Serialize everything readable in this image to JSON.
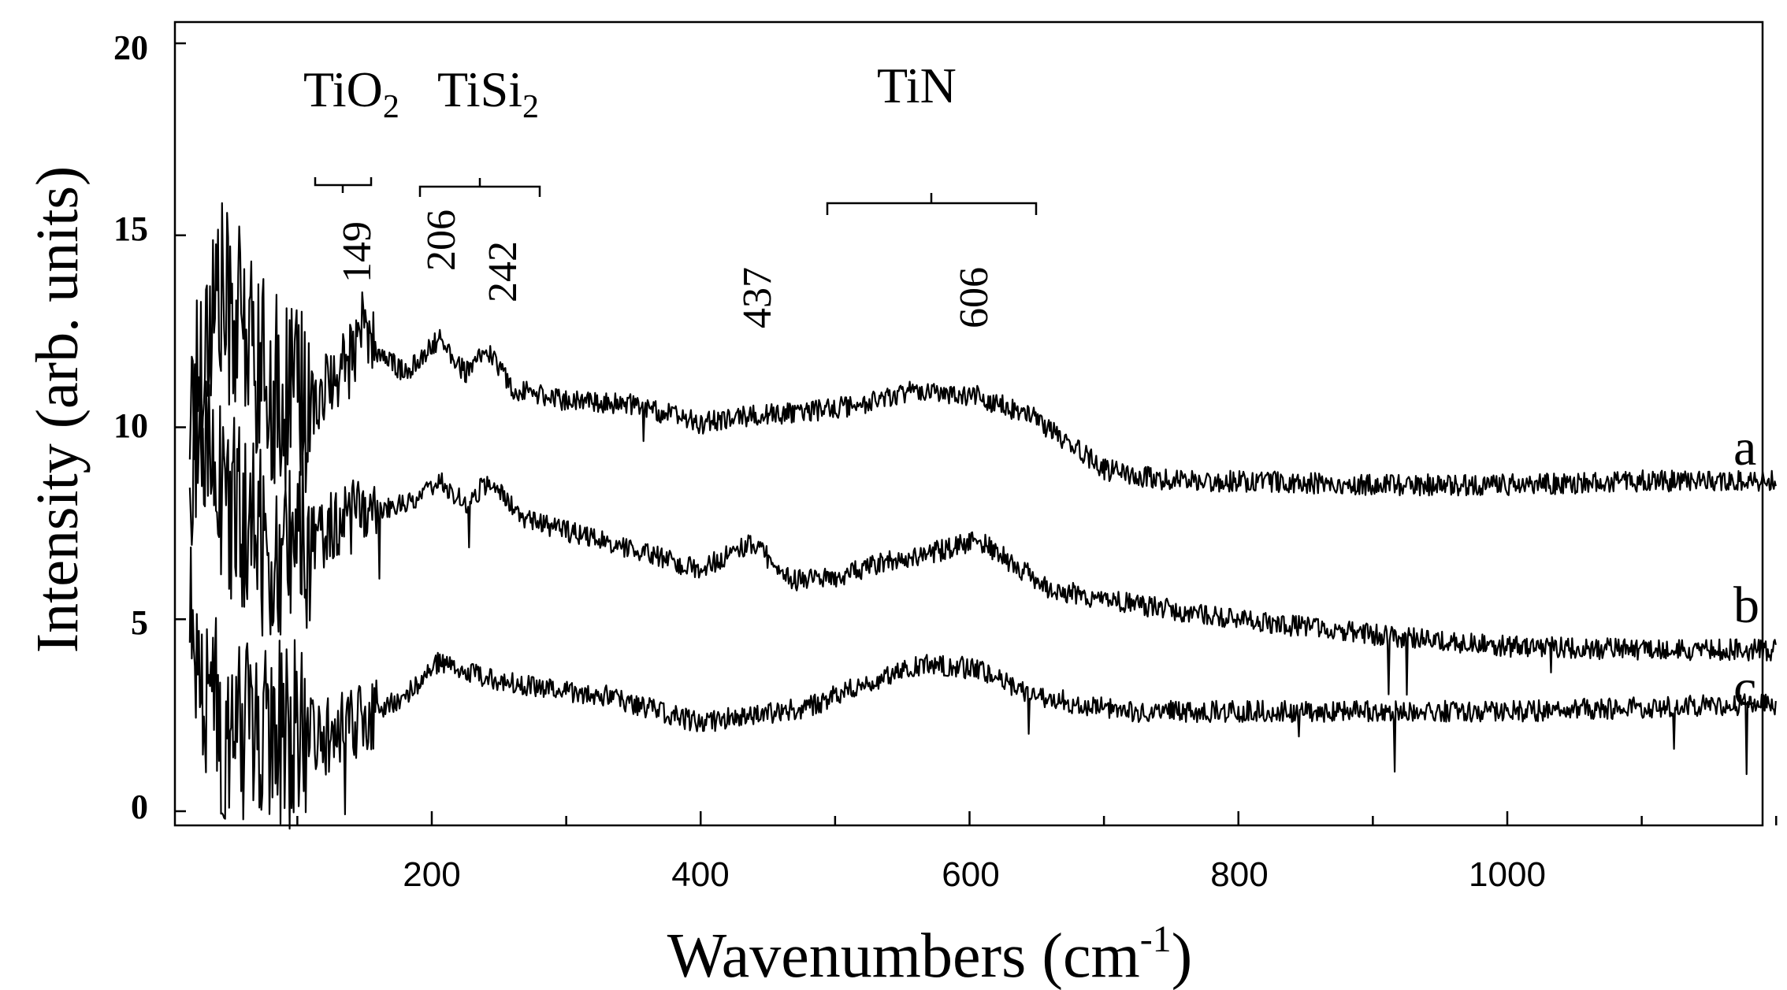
{
  "chart_data": {
    "type": "line",
    "title": "",
    "xlabel": "Wavenumbers (cm",
    "xlabel_sup": "-1",
    "xlabel_end": ")",
    "ylabel": "Intensity (arb. units)",
    "xlim": [
      20,
      1200
    ],
    "ylim": [
      0,
      20
    ],
    "xticks": [
      200,
      400,
      600,
      800,
      1000
    ],
    "yticks": [
      0,
      5,
      10,
      15,
      20
    ],
    "grid": false,
    "line_color": "#000000",
    "series": [
      {
        "name": "a",
        "x": [
          20,
          40,
          60,
          80,
          100,
          120,
          140,
          149,
          160,
          180,
          206,
          225,
          242,
          260,
          300,
          350,
          400,
          437,
          480,
          520,
          560,
          580,
          606,
          630,
          650,
          670,
          700,
          750,
          800,
          900,
          1000,
          1100,
          1200
        ],
        "values": [
          10.5,
          13.5,
          12.5,
          11.0,
          10.5,
          11.0,
          11.8,
          12.6,
          12.0,
          11.4,
          12.3,
          11.4,
          12.0,
          11.0,
          10.7,
          10.6,
          10.1,
          10.3,
          10.4,
          10.6,
          11.0,
          10.9,
          10.8,
          10.5,
          10.2,
          9.7,
          8.9,
          8.6,
          8.6,
          8.5,
          8.5,
          8.6,
          8.6
        ]
      },
      {
        "name": "b",
        "x": [
          20,
          40,
          60,
          80,
          100,
          120,
          149,
          180,
          206,
          225,
          242,
          270,
          300,
          350,
          400,
          437,
          470,
          500,
          540,
          580,
          606,
          630,
          660,
          700,
          800,
          900,
          1000,
          1100,
          1200
        ],
        "values": [
          9.5,
          8.5,
          7.5,
          7.0,
          6.8,
          7.2,
          7.8,
          8.0,
          8.6,
          8.0,
          8.6,
          7.6,
          7.3,
          6.8,
          6.3,
          7.0,
          6.0,
          6.1,
          6.5,
          6.8,
          7.1,
          6.5,
          5.8,
          5.5,
          5.0,
          4.6,
          4.3,
          4.2,
          4.2
        ]
      },
      {
        "name": "c",
        "x": [
          20,
          30,
          50,
          80,
          100,
          120,
          150,
          180,
          206,
          240,
          280,
          330,
          370,
          400,
          437,
          480,
          520,
          560,
          580,
          606,
          640,
          680,
          720,
          800,
          900,
          1000,
          1100,
          1200
        ],
        "values": [
          5.2,
          3.0,
          2.1,
          2.4,
          2.0,
          1.9,
          2.4,
          3.0,
          3.9,
          3.5,
          3.2,
          3.0,
          2.6,
          2.3,
          2.5,
          2.7,
          3.3,
          3.8,
          3.8,
          3.7,
          3.1,
          2.8,
          2.6,
          2.6,
          2.6,
          2.6,
          2.7,
          2.8
        ]
      }
    ],
    "annotations": {
      "peaks": [
        "149",
        "206",
        "242",
        "437",
        "606"
      ],
      "phases": [
        "TiO",
        "TiSi",
        "TiN"
      ],
      "phase_subscripts": [
        "2",
        "2"
      ],
      "curve_labels": [
        "a",
        "b",
        "c"
      ]
    }
  }
}
